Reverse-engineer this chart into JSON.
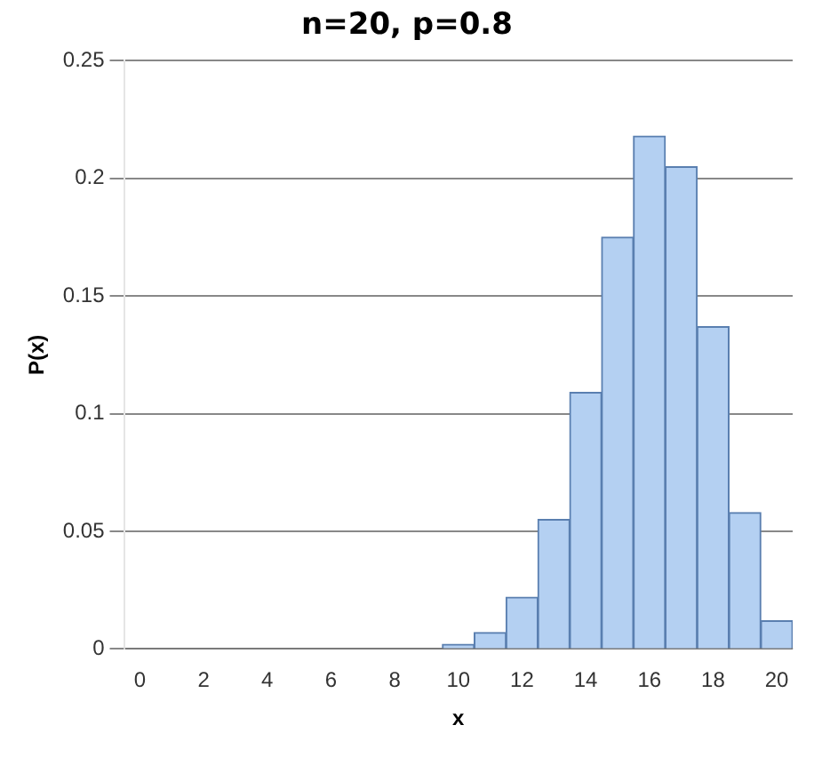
{
  "chart_data": {
    "type": "bar",
    "title": "n=20, p=0.8",
    "xlabel": "x",
    "ylabel": "P(x)",
    "categories": [
      "0",
      null,
      "2",
      null,
      "4",
      null,
      "6",
      null,
      "8",
      null,
      "10",
      null,
      "12",
      null,
      "14",
      null,
      "16",
      null,
      "18",
      null,
      "20"
    ],
    "values": [
      0,
      0,
      0,
      0,
      0,
      0,
      0,
      0,
      0,
      0,
      0.002,
      0.007,
      0.022,
      0.055,
      0.109,
      0.175,
      0.218,
      0.205,
      0.137,
      0.058,
      0.012
    ],
    "color": "#b4d0f2",
    "ylim": [
      0,
      0.25
    ],
    "yticks": [
      0,
      0.05,
      0.1,
      0.15,
      0.2,
      0.25
    ],
    "grid": "y",
    "legend": false
  }
}
